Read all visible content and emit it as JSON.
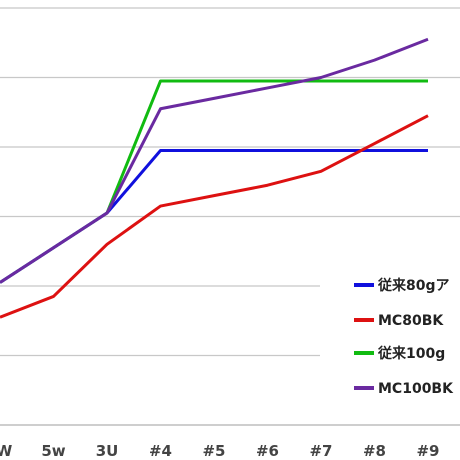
{
  "chart_data": {
    "type": "line",
    "title": "",
    "xlabel": "",
    "ylabel": "",
    "categories": [
      "W",
      "5w",
      "3U",
      "#4",
      "#5",
      "#6",
      "#7",
      "#8",
      "#9"
    ],
    "ylim": [
      0,
      6
    ],
    "grid": true,
    "legend_position": "right",
    "series": [
      {
        "name": "従来80gア",
        "color": "#1010dd",
        "values": [
          2.05,
          2.55,
          3.05,
          3.95,
          3.95,
          3.95,
          3.95,
          3.95,
          3.95
        ]
      },
      {
        "name": "MC80BK",
        "color": "#dd1111",
        "values": [
          1.55,
          1.85,
          2.6,
          3.15,
          3.3,
          3.45,
          3.65,
          4.05,
          4.45
        ]
      },
      {
        "name": "従来100g",
        "color": "#11bb11",
        "values": [
          2.05,
          2.55,
          3.05,
          4.95,
          4.95,
          4.95,
          4.95,
          4.95,
          4.95
        ]
      },
      {
        "name": "MC100BK",
        "color": "#6a2aa0",
        "values": [
          2.05,
          2.55,
          3.05,
          4.55,
          4.7,
          4.85,
          5.0,
          5.25,
          5.55
        ]
      }
    ]
  }
}
